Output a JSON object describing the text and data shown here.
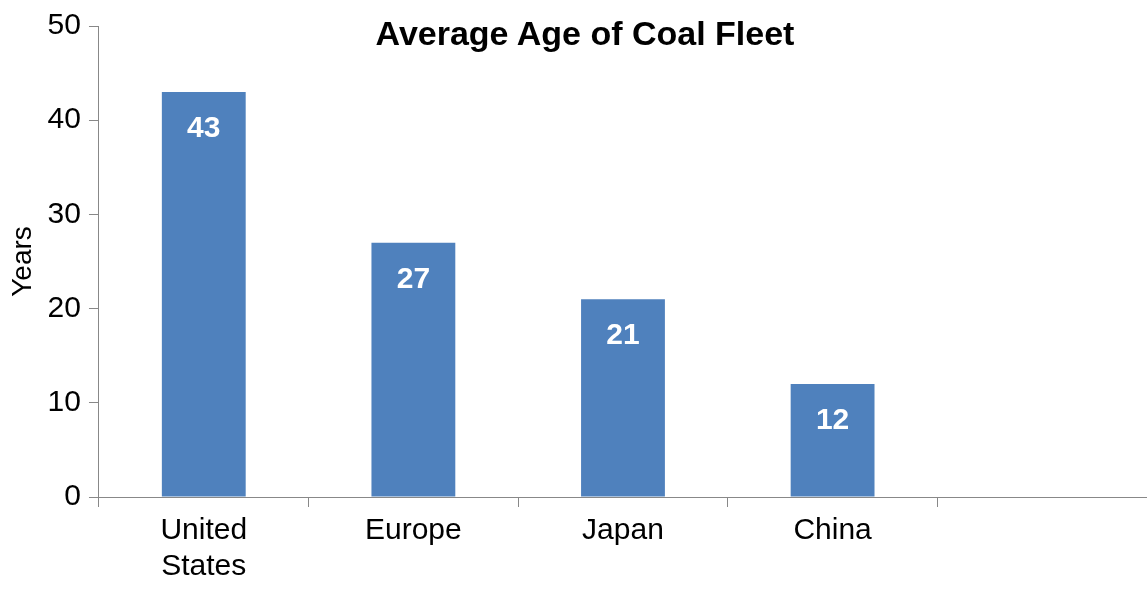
{
  "chart_data": {
    "type": "bar",
    "title": "Average Age of Coal Fleet",
    "ylabel": "Years",
    "categories": [
      "United States",
      "Europe",
      "Japan",
      "China",
      null
    ],
    "values": [
      43,
      27,
      21,
      12,
      null
    ],
    "color": "#4f81bd",
    "ylim": [
      0,
      50
    ],
    "yticks": [
      0,
      10,
      20,
      30,
      40,
      50
    ],
    "grid": false,
    "legend": false,
    "data_labels": true
  }
}
